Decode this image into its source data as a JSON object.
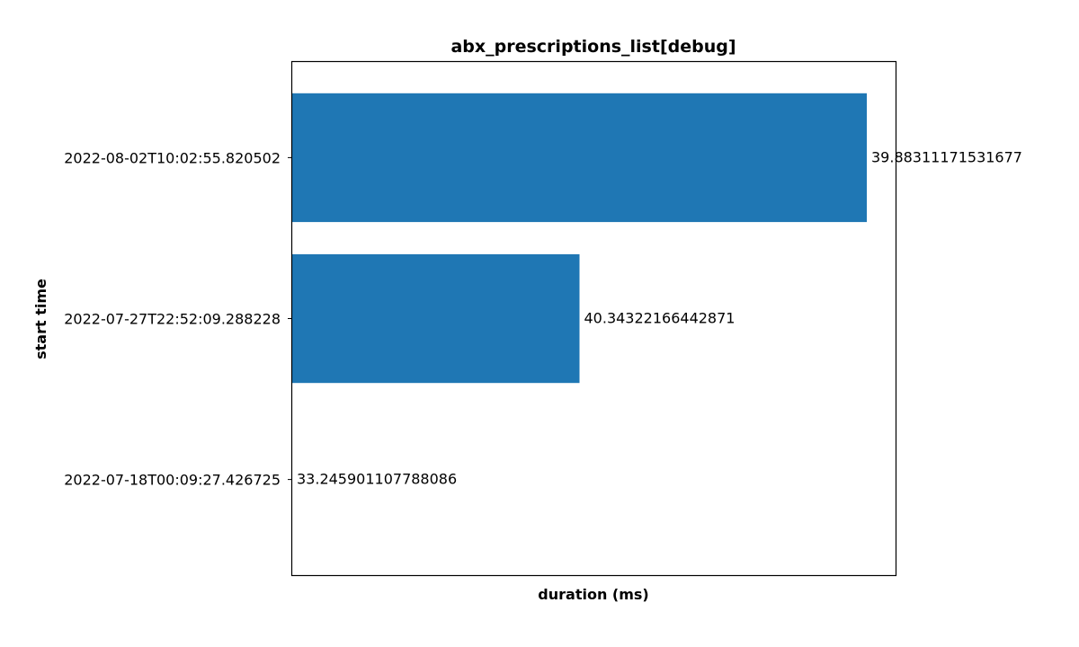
{
  "chart_data": {
    "type": "bar",
    "orientation": "horizontal",
    "title": "abx_prescriptions_list[debug]",
    "xlabel": "duration (ms)",
    "ylabel": "start time",
    "categories": [
      "2022-07-18T00:09:27.426725",
      "2022-07-27T22:52:09.288228",
      "2022-08-02T10:02:55.820502"
    ],
    "values": [
      33.245901107788086,
      40.34322166442871,
      39.88311171531677
    ],
    "bar_lengths": [
      0.0,
      0.5,
      1.0
    ],
    "data_labels": [
      "33.245901107788086",
      "40.34322166442871",
      "39.88311171531677"
    ],
    "x_ticks_visible": false,
    "grid": false,
    "bar_color": "#1f77b4"
  }
}
